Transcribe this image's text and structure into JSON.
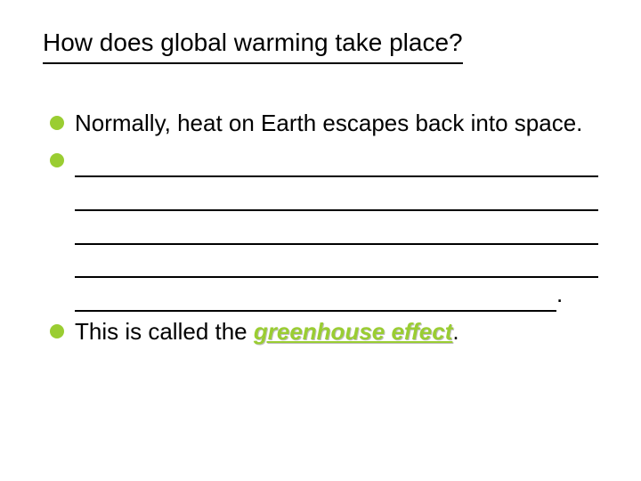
{
  "title": "How does global warming take place?",
  "bullet_color": "#9acd32",
  "text_color": "#000000",
  "background_color": "#ffffff",
  "title_fontsize": 28,
  "body_fontsize": 26,
  "bullets": [
    {
      "text": "Normally, heat on Earth escapes back into space."
    },
    {
      "blank_lines": 5,
      "trailing": "."
    },
    {
      "prefix": "This is called the ",
      "emphasis": "greenhouse effect",
      "suffix": "."
    }
  ]
}
